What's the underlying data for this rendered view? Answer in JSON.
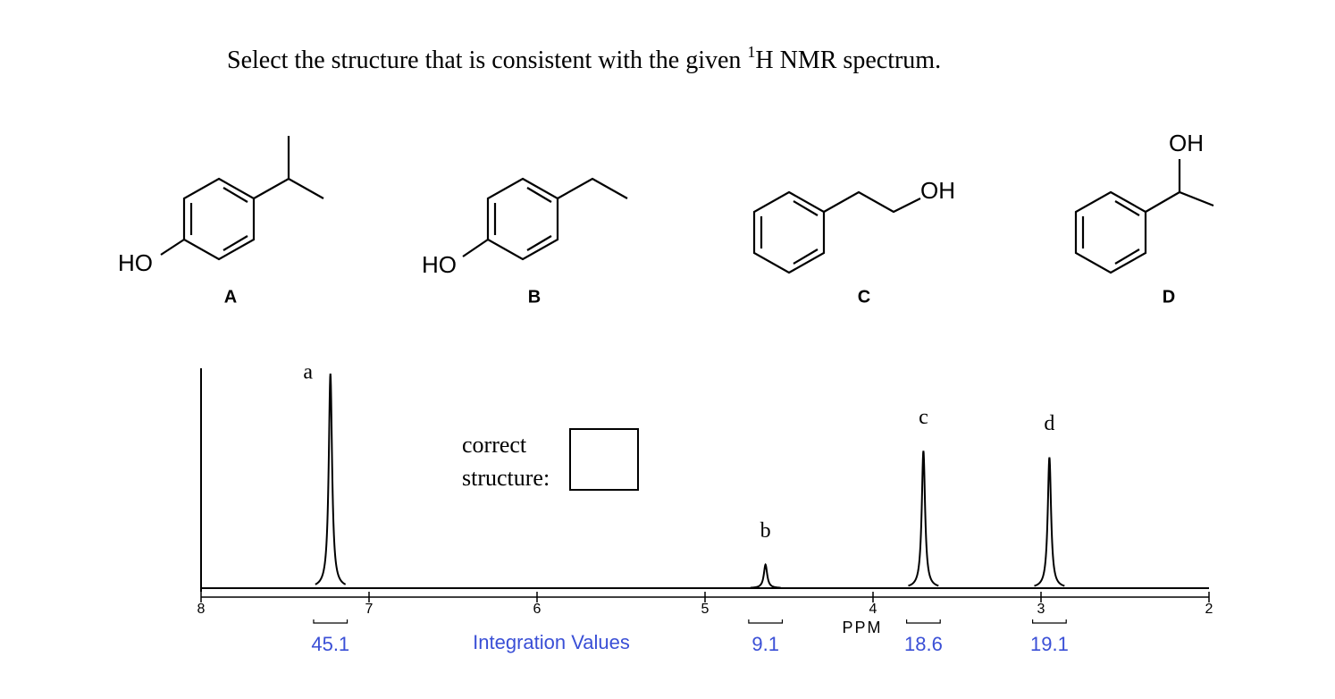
{
  "question": {
    "before": "Select the structure that is consistent with the given ",
    "sup": "1",
    "after": "H NMR spectrum."
  },
  "structures": [
    {
      "label": "A",
      "group": "HO"
    },
    {
      "label": "B",
      "group": "HO"
    },
    {
      "label": "C",
      "group": "OH"
    },
    {
      "label": "D",
      "group": "OH"
    }
  ],
  "answer_prompt": [
    "correct",
    "structure:"
  ],
  "spectrum": {
    "axis_label": "PPM",
    "xlim": [
      8,
      2
    ],
    "xticks": [
      8,
      7,
      6,
      5,
      4,
      3,
      2
    ],
    "integration_title": "Integration Values",
    "peaks": [
      {
        "label": "a",
        "ppm": 7.23,
        "intensity": 100,
        "integration": 45.1
      },
      {
        "label": "b",
        "ppm": 4.64,
        "intensity": 11,
        "integration": 9.1
      },
      {
        "label": "c",
        "ppm": 3.7,
        "intensity": 64,
        "integration": 18.6
      },
      {
        "label": "d",
        "ppm": 2.95,
        "intensity": 61,
        "integration": 19.1
      }
    ]
  }
}
